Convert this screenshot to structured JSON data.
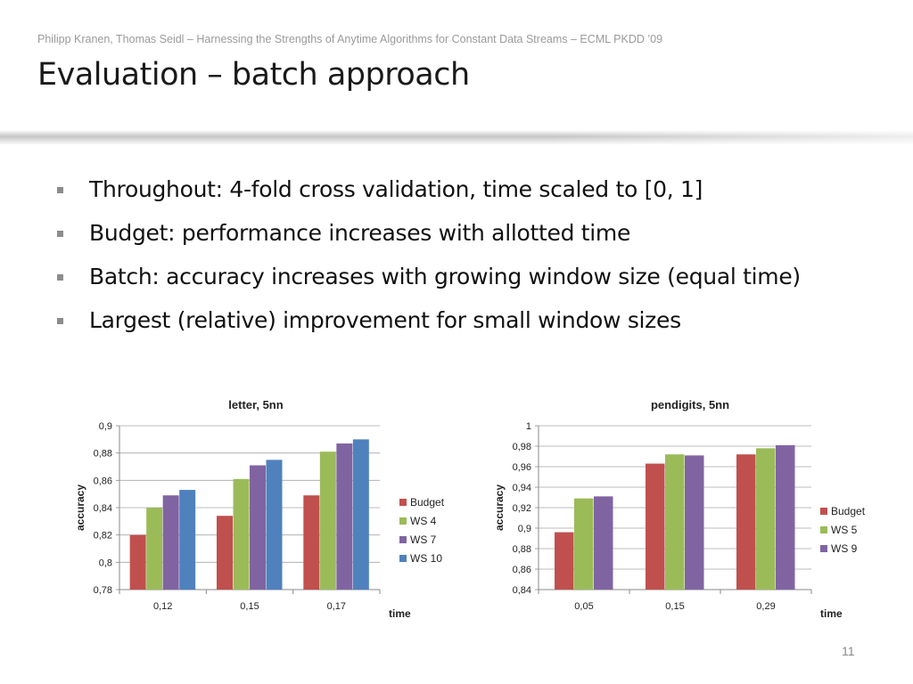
{
  "slide": {
    "header": "Philipp Kranen, Thomas Seidl – Harnessing the Strengths of Anytime Algorithms for Constant Data Streams – ECML PKDD ’09",
    "title": "Evaluation – batch approach",
    "bullets": [
      "Throughout: 4-fold cross validation, time scaled to [0, 1]",
      "Budget: performance increases with allotted time",
      "Batch: accuracy increases with growing window size (equal time)",
      "Largest (relative) improvement for small window sizes"
    ],
    "page_number": "11"
  },
  "chart_data": [
    {
      "type": "bar",
      "title": "letter, 5nn",
      "xlabel": "time",
      "ylabel": "accuracy",
      "categories": [
        "0,12",
        "0,15",
        "0,17"
      ],
      "ylim": [
        0.78,
        0.9
      ],
      "yticks": [
        "0,78",
        "0,8",
        "0,82",
        "0,84",
        "0,86",
        "0,88",
        "0,9"
      ],
      "grid": true,
      "legend": "right",
      "series": [
        {
          "name": "Budget",
          "color": "#c0504d",
          "values": [
            0.82,
            0.834,
            0.849
          ]
        },
        {
          "name": "WS 4",
          "color": "#9bbb59",
          "values": [
            0.84,
            0.861,
            0.881
          ]
        },
        {
          "name": "WS 7",
          "color": "#8064a2",
          "values": [
            0.849,
            0.871,
            0.887
          ]
        },
        {
          "name": "WS 10",
          "color": "#4f81bd",
          "values": [
            0.853,
            0.875,
            0.89
          ]
        }
      ]
    },
    {
      "type": "bar",
      "title": "pendigits, 5nn",
      "xlabel": "time",
      "ylabel": "accuracy",
      "categories": [
        "0,05",
        "0,15",
        "0,29"
      ],
      "ylim": [
        0.84,
        1.0
      ],
      "yticks": [
        "0,84",
        "0,86",
        "0,88",
        "0,9",
        "0,92",
        "0,94",
        "0,96",
        "0,98",
        "1"
      ],
      "grid": true,
      "legend": "right",
      "series": [
        {
          "name": "Budget",
          "color": "#c0504d",
          "values": [
            0.896,
            0.963,
            0.972
          ]
        },
        {
          "name": "WS 5",
          "color": "#9bbb59",
          "values": [
            0.929,
            0.972,
            0.978
          ]
        },
        {
          "name": "WS 9",
          "color": "#8064a2",
          "values": [
            0.931,
            0.971,
            0.981
          ]
        }
      ]
    }
  ]
}
